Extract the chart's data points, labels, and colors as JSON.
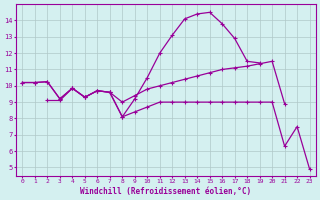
{
  "x": [
    0,
    1,
    2,
    3,
    4,
    5,
    6,
    7,
    8,
    9,
    10,
    11,
    12,
    13,
    14,
    15,
    16,
    17,
    18,
    19,
    20,
    21,
    22,
    23
  ],
  "line1_x": [
    0,
    1,
    2,
    3,
    4,
    5,
    6,
    7,
    8,
    9,
    10,
    11,
    12,
    13,
    14,
    15,
    16,
    17,
    18,
    19
  ],
  "line1_y": [
    10.2,
    10.2,
    10.25,
    9.2,
    9.85,
    9.3,
    9.7,
    9.6,
    8.1,
    9.2,
    10.5,
    12.0,
    13.1,
    14.1,
    14.4,
    14.5,
    13.8,
    12.9,
    11.5,
    11.4
  ],
  "line2_x": [
    0,
    1,
    2,
    3,
    4,
    5,
    6,
    7,
    8,
    9,
    10,
    11,
    12,
    13,
    14,
    15,
    16,
    17,
    18,
    19,
    20,
    21
  ],
  "line2_y": [
    10.2,
    10.2,
    10.25,
    9.2,
    9.85,
    9.3,
    9.7,
    9.6,
    9.0,
    9.4,
    9.8,
    10.0,
    10.2,
    10.4,
    10.6,
    10.8,
    11.0,
    11.1,
    11.2,
    11.35,
    11.5,
    8.9
  ],
  "line3_x": [
    2,
    3,
    4,
    5,
    6,
    7,
    8,
    9,
    10,
    11,
    12,
    13,
    14,
    15,
    16,
    17,
    18,
    19,
    20,
    21,
    22,
    23
  ],
  "line3_y": [
    9.1,
    9.1,
    9.85,
    9.3,
    9.7,
    9.6,
    8.1,
    8.4,
    8.7,
    9.0,
    9.0,
    9.0,
    9.0,
    9.0,
    9.0,
    9.0,
    9.0,
    9.0,
    9.0,
    6.3,
    7.5,
    4.9
  ],
  "line_color": "#990099",
  "bg_color": "#d4f0f0",
  "grid_color": "#b0c8c8",
  "xlabel": "Windchill (Refroidissement éolien,°C)",
  "ylim": [
    4.5,
    15.0
  ],
  "xlim": [
    -0.5,
    23.5
  ],
  "yticks": [
    5,
    6,
    7,
    8,
    9,
    10,
    11,
    12,
    13,
    14
  ],
  "xticks": [
    0,
    1,
    2,
    3,
    4,
    5,
    6,
    7,
    8,
    9,
    10,
    11,
    12,
    13,
    14,
    15,
    16,
    17,
    18,
    19,
    20,
    21,
    22,
    23
  ]
}
